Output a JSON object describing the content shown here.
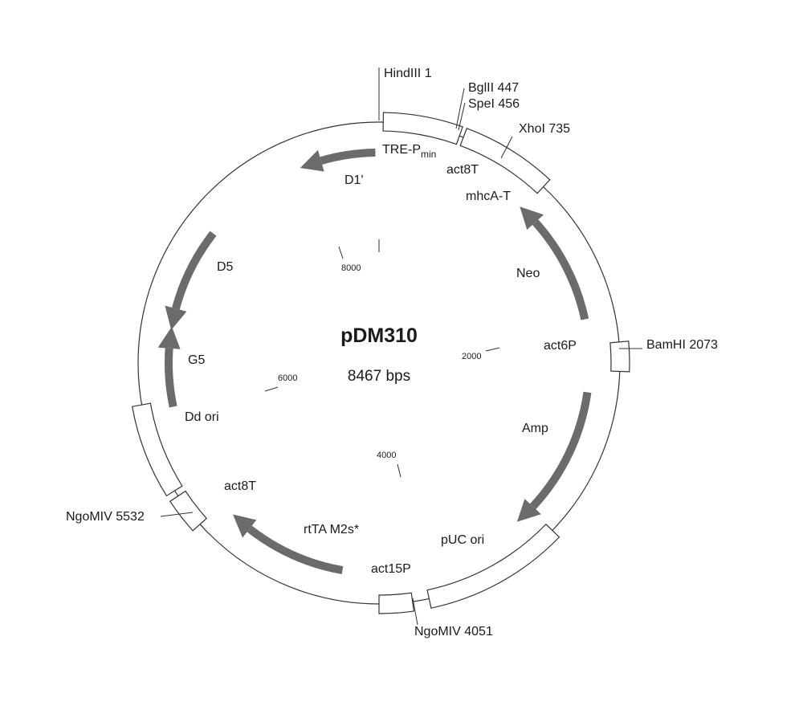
{
  "plasmid": {
    "name": "pDM310",
    "size_label": "8467 bps",
    "length_bp": 8467
  },
  "ticks": [
    {
      "bp": 2000,
      "label": "2000"
    },
    {
      "bp": 4000,
      "label": "4000"
    },
    {
      "bp": 6000,
      "label": "6000"
    },
    {
      "bp": 8000,
      "label": "8000"
    }
  ],
  "restriction_sites": [
    {
      "label": "HindIII 1",
      "bp": 1
    },
    {
      "label": "BglII 447",
      "bp": 447
    },
    {
      "label": "SpeI 456",
      "bp": 456
    },
    {
      "label": "XhoI 735",
      "bp": 735
    },
    {
      "label": "BamHI 2073",
      "bp": 2073
    },
    {
      "label": "NgoMIV 4051",
      "bp": 4051
    },
    {
      "label": "NgoMIV 5532",
      "bp": 5532
    }
  ],
  "features": {
    "tre_p": {
      "label": "TRE-P",
      "sub": "min"
    },
    "d1": "D1'",
    "act8t_top": "act8T",
    "mhca_t": "mhcA-T",
    "neo": "Neo",
    "act6p": "act6P",
    "amp": "Amp",
    "puc_ori": "pUC ori",
    "act15p": "act15P",
    "rtta": "rtTA M2s*",
    "act8t_bottom": "act8T",
    "dd_ori": "Dd ori",
    "g5": "G5",
    "d5": "D5"
  },
  "colors": {
    "arrow": "#6b6b6b",
    "line": "#333333",
    "box_fill": "#ffffff"
  }
}
